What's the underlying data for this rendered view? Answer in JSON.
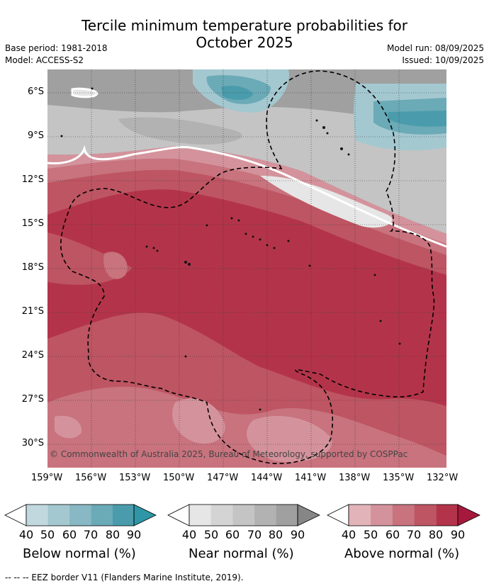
{
  "header": {
    "title_line1": "Tercile minimum temperature probabilities for",
    "title_line2": "October 2025",
    "base_period": "Base period: 1981-2018",
    "model": "Model: ACCESS-S2",
    "model_run": "Model run: 08/09/2025",
    "issued": "Issued: 10/09/2025"
  },
  "map": {
    "lat_labels": [
      "6°S",
      "9°S",
      "12°S",
      "15°S",
      "18°S",
      "21°S",
      "24°S",
      "27°S",
      "30°S"
    ],
    "lon_labels": [
      "159°W",
      "156°W",
      "153°W",
      "150°W",
      "147°W",
      "144°W",
      "141°W",
      "138°W",
      "135°W",
      "132°W"
    ],
    "copyright": "© Commonwealth of Australia 2025, Bureau of Meteorology, supported by COSPPac"
  },
  "legend": {
    "ticks": [
      "40",
      "50",
      "60",
      "70",
      "80",
      "90"
    ],
    "below": {
      "label": "Below normal (%)",
      "colors": [
        "#c0d8de",
        "#a4c8d0",
        "#88b8c3",
        "#6baab7",
        "#4a9cac"
      ]
    },
    "near": {
      "label": "Near normal (%)",
      "colors": [
        "#e6e6e6",
        "#d4d4d4",
        "#c4c4c4",
        "#b2b2b2",
        "#a0a0a0"
      ]
    },
    "above": {
      "label": "Above normal (%)",
      "colors": [
        "#e3b3ba",
        "#d4939c",
        "#c8737e",
        "#be5563",
        "#b3344a"
      ]
    }
  },
  "footer": {
    "eez_note": "--  --  -- EEZ border V11 (Flanders Marine Institute, 2019)."
  }
}
